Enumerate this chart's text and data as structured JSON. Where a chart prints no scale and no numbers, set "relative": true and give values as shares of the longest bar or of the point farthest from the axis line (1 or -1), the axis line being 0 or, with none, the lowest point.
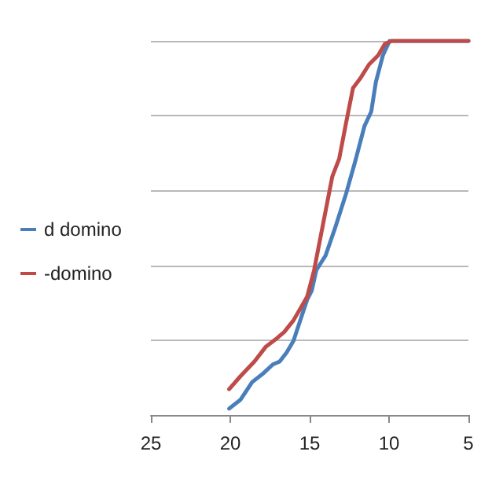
{
  "chart_data": {
    "type": "line",
    "relative": true,
    "xlim": [
      25,
      5
    ],
    "xticks": [
      25,
      20,
      15,
      10,
      5
    ],
    "grid": "y",
    "legend": "left",
    "marker": "none",
    "line_style": "solid",
    "series": [
      {
        "name": "d domino",
        "color": "#4a7ebb",
        "x": [
          20.07,
          19.35,
          18.62,
          17.9,
          17.32,
          16.89,
          16.45,
          16.02,
          15.59,
          15.16,
          14.87,
          14.58,
          14.0,
          13.42,
          12.71,
          12.13,
          11.55,
          11.12,
          10.83,
          10.39,
          9.96,
          5
        ],
        "values": [
          0.017,
          0.041,
          0.088,
          0.112,
          0.135,
          0.143,
          0.167,
          0.198,
          0.253,
          0.308,
          0.332,
          0.387,
          0.426,
          0.497,
          0.591,
          0.678,
          0.772,
          0.811,
          0.89,
          0.961,
          1,
          1
        ]
      },
      {
        "name": "-domino",
        "color": "#be4b48",
        "x": [
          20.07,
          19.35,
          18.48,
          17.75,
          17.18,
          16.6,
          16.02,
          15.59,
          15.16,
          14.72,
          14.29,
          13.86,
          13.57,
          13.14,
          12.71,
          12.27,
          11.84,
          11.26,
          10.69,
          10.26,
          9.82,
          5
        ],
        "values": [
          0.069,
          0.104,
          0.143,
          0.183,
          0.201,
          0.222,
          0.253,
          0.284,
          0.316,
          0.387,
          0.481,
          0.575,
          0.638,
          0.685,
          0.78,
          0.874,
          0.898,
          0.937,
          0.961,
          0.992,
          1,
          1
        ]
      }
    ]
  }
}
